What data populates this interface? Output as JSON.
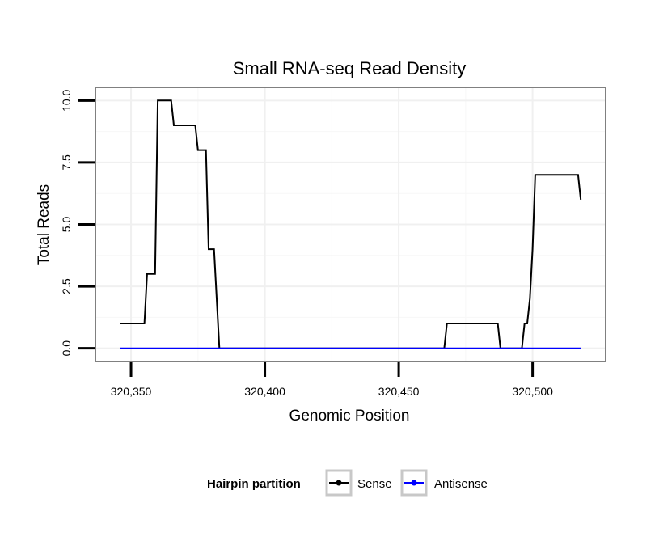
{
  "chart_data": {
    "type": "line",
    "title": "Small RNA-seq Read Density",
    "xlabel": "Genomic Position",
    "ylabel": "Total Reads",
    "xlim": [
      320337,
      320527
    ],
    "ylim": [
      -0.5,
      10.5
    ],
    "x_ticks": [
      320350,
      320400,
      320450,
      320500
    ],
    "x_tick_labels": [
      "320,350",
      "320,400",
      "320,450",
      "320,500"
    ],
    "y_ticks": [
      0,
      2.5,
      5,
      7.5,
      10
    ],
    "y_tick_labels": [
      "0.0",
      "2.5",
      "5.0",
      "7.5",
      "10.0"
    ],
    "grid": true,
    "legend": {
      "title": "Hairpin partition",
      "position": "bottom"
    },
    "series": [
      {
        "name": "Sense",
        "color": "#000000",
        "points": [
          [
            320346,
            1
          ],
          [
            320355,
            1
          ],
          [
            320356,
            3
          ],
          [
            320359,
            3
          ],
          [
            320360,
            10
          ],
          [
            320365,
            10
          ],
          [
            320366,
            9
          ],
          [
            320374,
            9
          ],
          [
            320375,
            8
          ],
          [
            320378,
            8
          ],
          [
            320379,
            4
          ],
          [
            320381,
            4
          ],
          [
            320383,
            0
          ],
          [
            320467,
            0
          ],
          [
            320468,
            1
          ],
          [
            320487,
            1
          ],
          [
            320488,
            0
          ],
          [
            320496,
            0
          ],
          [
            320497,
            1
          ],
          [
            320498,
            1
          ],
          [
            320499,
            2
          ],
          [
            320500,
            4
          ],
          [
            320501,
            7
          ],
          [
            320517,
            7
          ],
          [
            320518,
            6
          ]
        ]
      },
      {
        "name": "Antisense",
        "color": "#0000ff",
        "points": [
          [
            320346,
            0
          ],
          [
            320518,
            0
          ]
        ]
      }
    ]
  }
}
